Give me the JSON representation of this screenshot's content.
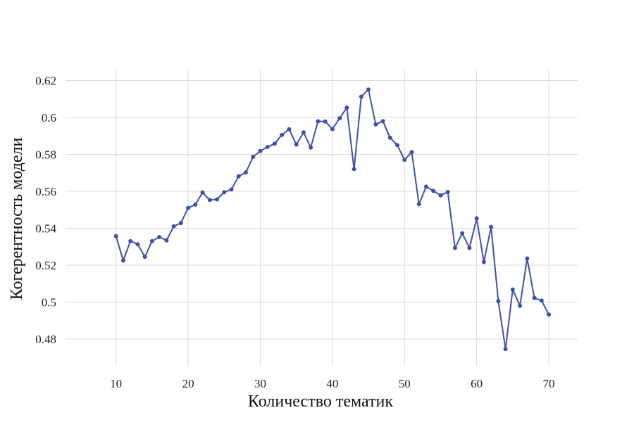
{
  "chart_data": {
    "type": "line",
    "title": "",
    "xlabel": "Количество тематик",
    "ylabel": "Когерентность модели",
    "xlim": [
      3,
      74
    ],
    "ylim": [
      0.4655,
      0.6255
    ],
    "xticks": [
      10,
      20,
      30,
      40,
      50,
      60,
      70
    ],
    "yticks": [
      0.48,
      0.5,
      0.52,
      0.54,
      0.56,
      0.58,
      0.6,
      0.62
    ],
    "ytick_labels": [
      "0.48",
      "0.5",
      "0.52",
      "0.54",
      "0.56",
      "0.58",
      "0.6",
      "0.62"
    ],
    "grid": true,
    "colors": {
      "series": "#3f4fb0",
      "grid": "#d9d9d9"
    },
    "x": [
      10,
      11,
      12,
      13,
      14,
      15,
      16,
      17,
      18,
      19,
      20,
      21,
      22,
      23,
      24,
      25,
      26,
      27,
      28,
      29,
      30,
      31,
      32,
      33,
      34,
      35,
      36,
      37,
      38,
      39,
      40,
      41,
      42,
      43,
      44,
      45,
      46,
      47,
      48,
      49,
      50,
      51,
      52,
      53,
      54,
      55,
      56,
      57,
      58,
      59,
      60,
      61,
      62,
      63,
      64,
      65,
      66,
      67,
      68,
      69,
      70
    ],
    "series": [
      {
        "values": [
          0.5357,
          0.5225,
          0.533,
          0.5313,
          0.5245,
          0.533,
          0.5352,
          0.5334,
          0.541,
          0.5428,
          0.551,
          0.5528,
          0.5593,
          0.5553,
          0.5556,
          0.5595,
          0.561,
          0.5681,
          0.5702,
          0.5786,
          0.5818,
          0.584,
          0.5858,
          0.5905,
          0.5936,
          0.5853,
          0.5919,
          0.5837,
          0.5979,
          0.5978,
          0.5937,
          0.5995,
          0.6053,
          0.572,
          0.6112,
          0.6151,
          0.5962,
          0.598,
          0.589,
          0.585,
          0.577,
          0.5812,
          0.553,
          0.5625,
          0.5602,
          0.5578,
          0.5596,
          0.5293,
          0.5372,
          0.5293,
          0.5453,
          0.5217,
          0.5407,
          0.5005,
          0.4746,
          0.5068,
          0.498,
          0.5236,
          0.5022,
          0.5008,
          0.4932
        ]
      }
    ]
  }
}
